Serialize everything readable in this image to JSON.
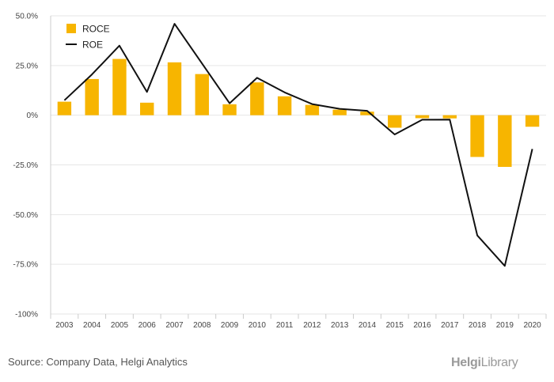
{
  "chart_data": {
    "type": "bar",
    "categories": [
      "2003",
      "2004",
      "2005",
      "2006",
      "2007",
      "2008",
      "2009",
      "2010",
      "2011",
      "2012",
      "2013",
      "2014",
      "2015",
      "2016",
      "2017",
      "2018",
      "2019",
      "2020"
    ],
    "series": [
      {
        "name": "ROCE",
        "kind": "bar",
        "color": "#F7B500",
        "values": [
          6.8,
          18.2,
          28.3,
          6.3,
          26.6,
          20.7,
          5.5,
          16.5,
          9.5,
          5.2,
          2.8,
          1.8,
          -6.3,
          -1.5,
          -1.6,
          -21.0,
          -26.0,
          -5.8
        ]
      },
      {
        "name": "ROE",
        "kind": "line",
        "color": "#111111",
        "values": [
          7.5,
          20.5,
          35.0,
          11.7,
          46.0,
          26.0,
          6.0,
          18.8,
          11.5,
          5.6,
          3.2,
          2.2,
          -9.7,
          -2.3,
          -2.2,
          -60.5,
          -75.8,
          -17.0
        ]
      }
    ],
    "ylim": [
      -100,
      50
    ],
    "y_ticks": [
      {
        "value": 50,
        "label": "50.0%"
      },
      {
        "value": 25,
        "label": "25.0%"
      },
      {
        "value": 0,
        "label": "0%"
      },
      {
        "value": -25,
        "label": "-25.0%"
      },
      {
        "value": -50,
        "label": "-50.0%"
      },
      {
        "value": -75,
        "label": "-75.0%"
      },
      {
        "value": -100,
        "label": "-100%"
      }
    ],
    "grid": true,
    "legend_position": "top-left",
    "xlabel": "",
    "ylabel": ""
  },
  "footer": {
    "source": "Source: Company Data, Helgi Analytics",
    "brand_bold": "Helgi",
    "brand_light": "Library"
  },
  "colors": {
    "grid": "#e6e6e6",
    "axis": "#cccccc"
  }
}
